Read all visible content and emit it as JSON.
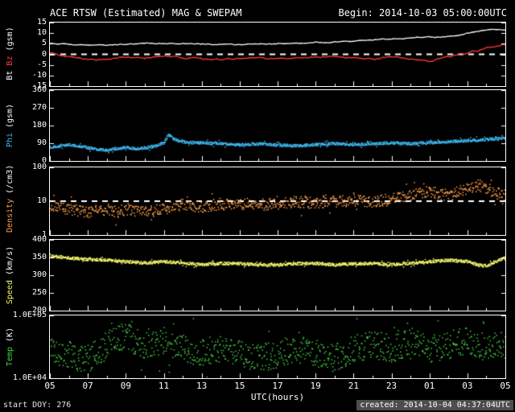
{
  "header": {
    "title": "ACE RTSW (Estimated) MAG & SWEPAM",
    "begin": "Begin: 2014-10-03 05:00:00UTC"
  },
  "footer": {
    "start_doy": "start DOY: 276",
    "created": "created: 2014-10-04 04:37:04UTC"
  },
  "colors": {
    "background": "#000000",
    "frame": "#ffffff",
    "bt": "#ffffff",
    "bz": "#ff3b3b",
    "phi": "#3fb8f0",
    "density": "#ffa04d",
    "speed": "#f5f56e",
    "temp": "#44d044"
  },
  "xaxis": {
    "title": "UTC(hours)",
    "range_hours": [
      5,
      29
    ],
    "ticks": [
      "05",
      "07",
      "09",
      "11",
      "13",
      "15",
      "17",
      "19",
      "21",
      "23",
      "01",
      "03",
      "05"
    ]
  },
  "chart_data": [
    {
      "id": "mag",
      "type": "line",
      "scale": "linear",
      "ylim": [
        -15,
        15
      ],
      "dashed": 0,
      "yticks": [
        {
          "v": 15,
          "label": "15"
        },
        {
          "v": 10,
          "label": "10"
        },
        {
          "v": 5,
          "label": "5"
        },
        {
          "v": 0,
          "label": "0"
        },
        {
          "v": -5,
          "label": "-5"
        },
        {
          "v": -10,
          "label": "-10"
        },
        {
          "v": -15,
          "label": "-15"
        }
      ],
      "ylabel": [
        {
          "text": "Bt",
          "color": "#ffffff"
        },
        {
          "text": "Bz",
          "color": "#ff3b3b"
        },
        {
          "text": "(gsm)",
          "color": "#ffffff"
        }
      ],
      "series": [
        {
          "name": "Bt",
          "color": "#ffffff",
          "style": "line",
          "jitter": 0.5,
          "points": [
            [
              5,
              5.3
            ],
            [
              5.5,
              5
            ],
            [
              6,
              4.7
            ],
            [
              7,
              4.3
            ],
            [
              7.5,
              4.6
            ],
            [
              8,
              4.3
            ],
            [
              9,
              4.8
            ],
            [
              10,
              5.1
            ],
            [
              11,
              5.2
            ],
            [
              12,
              5
            ],
            [
              13,
              4.8
            ],
            [
              14,
              4.6
            ],
            [
              15,
              4.6
            ],
            [
              16,
              4.8
            ],
            [
              17,
              5
            ],
            [
              18,
              5.2
            ],
            [
              19,
              5.5
            ],
            [
              20,
              5.8
            ],
            [
              21,
              6.2
            ],
            [
              22,
              6.8
            ],
            [
              23,
              7.2
            ],
            [
              24,
              7.7
            ],
            [
              25,
              8.2
            ],
            [
              25.3,
              7.8
            ],
            [
              26,
              8.4
            ],
            [
              26.5,
              9
            ],
            [
              27,
              9.8
            ],
            [
              27.5,
              10.8
            ],
            [
              28,
              11.4
            ],
            [
              28.4,
              11.8
            ],
            [
              28.7,
              11.5
            ],
            [
              29,
              11.2
            ]
          ]
        },
        {
          "name": "Bz",
          "color": "#ff3b3b",
          "style": "line",
          "jitter": 0.8,
          "points": [
            [
              5,
              0.5
            ],
            [
              5.5,
              -0.5
            ],
            [
              6,
              -1.2
            ],
            [
              7,
              -2.2
            ],
            [
              8,
              -2.4
            ],
            [
              8.5,
              -1.8
            ],
            [
              9,
              -1.2
            ],
            [
              10,
              -2
            ],
            [
              11,
              -0.8
            ],
            [
              12,
              -1.6
            ],
            [
              13,
              -2.1
            ],
            [
              14,
              -2.6
            ],
            [
              15,
              -2
            ],
            [
              16,
              -1.5
            ],
            [
              17,
              -2
            ],
            [
              18,
              -1.8
            ],
            [
              19,
              -1.4
            ],
            [
              20,
              -1.1
            ],
            [
              21,
              -1.6
            ],
            [
              22,
              -2.1
            ],
            [
              23,
              -1.1
            ],
            [
              24,
              -2
            ],
            [
              25,
              -3.1
            ],
            [
              25.5,
              -2.2
            ],
            [
              26,
              -1.2
            ],
            [
              26.5,
              -0.2
            ],
            [
              27,
              0.8
            ],
            [
              27.5,
              1.8
            ],
            [
              28,
              2.8
            ],
            [
              28.5,
              3.8
            ],
            [
              29,
              4.4
            ]
          ]
        }
      ]
    },
    {
      "id": "phi",
      "type": "scatter",
      "scale": "linear",
      "ylim": [
        0,
        360
      ],
      "yticks": [
        {
          "v": 360,
          "label": "360"
        },
        {
          "v": 270,
          "label": "270"
        },
        {
          "v": 180,
          "label": "180"
        },
        {
          "v": 90,
          "label": "90"
        },
        {
          "v": 0,
          "label": "0"
        }
      ],
      "ylabel": [
        {
          "text": "Phi",
          "color": "#3fb8f0"
        },
        {
          "text": "(gsm)",
          "color": "#ffffff"
        }
      ],
      "series": [
        {
          "name": "Phi",
          "color": "#3fb8f0",
          "style": "dots",
          "jitter": 7,
          "step": 0.0167,
          "points": [
            [
              5,
              72
            ],
            [
              5.5,
              80
            ],
            [
              6,
              85
            ],
            [
              6.5,
              78
            ],
            [
              7,
              70
            ],
            [
              7.5,
              62
            ],
            [
              8,
              58
            ],
            [
              8.5,
              66
            ],
            [
              9,
              72
            ],
            [
              9.5,
              64
            ],
            [
              10,
              70
            ],
            [
              10.5,
              78
            ],
            [
              11,
              95
            ],
            [
              11.2,
              135
            ],
            [
              11.5,
              115
            ],
            [
              12,
              100
            ],
            [
              12.5,
              96
            ],
            [
              13,
              94
            ],
            [
              14,
              90
            ],
            [
              15,
              85
            ],
            [
              16,
              90
            ],
            [
              17,
              84
            ],
            [
              18,
              80
            ],
            [
              19,
              86
            ],
            [
              20,
              91
            ],
            [
              21,
              86
            ],
            [
              22,
              91
            ],
            [
              23,
              95
            ],
            [
              24,
              90
            ],
            [
              25,
              96
            ],
            [
              26,
              101
            ],
            [
              27,
              106
            ],
            [
              28,
              112
            ],
            [
              28.5,
              116
            ],
            [
              29,
              121
            ]
          ]
        }
      ]
    },
    {
      "id": "density",
      "type": "scatter",
      "scale": "log",
      "ylim": [
        1,
        100
      ],
      "dashed": 10,
      "yticks": [
        {
          "v": 100,
          "label": "100"
        },
        {
          "v": 10,
          "label": "10"
        },
        {
          "v": 1,
          "label": "1"
        }
      ],
      "ylabel": [
        {
          "text": "Density",
          "color": "#ffa04d"
        },
        {
          "text": "(/cm3)",
          "color": "#ffffff"
        }
      ],
      "series": [
        {
          "name": "Density",
          "color": "#ffa04d",
          "style": "dots",
          "jitter": 0.17,
          "step": 0.025,
          "points": [
            [
              5,
              8
            ],
            [
              5.5,
              7
            ],
            [
              6,
              6
            ],
            [
              7,
              5
            ],
            [
              8,
              6
            ],
            [
              8.5,
              5
            ],
            [
              9,
              6
            ],
            [
              10,
              5
            ],
            [
              11,
              6
            ],
            [
              12,
              8
            ],
            [
              13,
              7
            ],
            [
              14,
              8
            ],
            [
              15,
              9
            ],
            [
              16,
              8
            ],
            [
              17,
              9
            ],
            [
              18,
              10
            ],
            [
              19,
              9
            ],
            [
              20,
              10
            ],
            [
              21,
              11
            ],
            [
              22,
              10
            ],
            [
              23,
              12
            ],
            [
              24,
              15
            ],
            [
              25,
              20
            ],
            [
              25.5,
              17
            ],
            [
              26,
              15
            ],
            [
              26.5,
              20
            ],
            [
              27,
              26
            ],
            [
              27.5,
              30
            ],
            [
              28,
              24
            ],
            [
              28.5,
              18
            ],
            [
              29,
              15
            ]
          ]
        }
      ]
    },
    {
      "id": "speed",
      "type": "scatter",
      "scale": "linear",
      "ylim": [
        200,
        400
      ],
      "yticks": [
        {
          "v": 400,
          "label": "400"
        },
        {
          "v": 350,
          "label": "350"
        },
        {
          "v": 300,
          "label": "300"
        },
        {
          "v": 250,
          "label": "250"
        },
        {
          "v": 200,
          "label": "200"
        }
      ],
      "ylabel": [
        {
          "text": "Speed",
          "color": "#f5f56e"
        },
        {
          "text": "(km/s)",
          "color": "#ffffff"
        }
      ],
      "series": [
        {
          "name": "Speed",
          "color": "#f5f56e",
          "style": "dots",
          "jitter": 4,
          "step": 0.0167,
          "points": [
            [
              5,
              356
            ],
            [
              6,
              350
            ],
            [
              7,
              346
            ],
            [
              8,
              344
            ],
            [
              9,
              340
            ],
            [
              10,
              336
            ],
            [
              11,
              340
            ],
            [
              12,
              336
            ],
            [
              13,
              332
            ],
            [
              14,
              335
            ],
            [
              15,
              334
            ],
            [
              16,
              331
            ],
            [
              17,
              331
            ],
            [
              18,
              334
            ],
            [
              19,
              335
            ],
            [
              20,
              331
            ],
            [
              21,
              334
            ],
            [
              22,
              335
            ],
            [
              23,
              331
            ],
            [
              24,
              335
            ],
            [
              25,
              340
            ],
            [
              26,
              344
            ],
            [
              27,
              340
            ],
            [
              27.5,
              331
            ],
            [
              28,
              328
            ],
            [
              28.4,
              338
            ],
            [
              28.7,
              346
            ],
            [
              29,
              352
            ]
          ]
        }
      ]
    },
    {
      "id": "temp",
      "type": "scatter",
      "scale": "log",
      "ylim": [
        10000,
        100000
      ],
      "yticks": [
        {
          "v": 100000,
          "label": "1.0E+05"
        },
        {
          "v": 10000,
          "label": "1.0E+04"
        }
      ],
      "ylabel": [
        {
          "text": "Temp",
          "color": "#44d044"
        },
        {
          "text": "(K)",
          "color": "#ffffff"
        }
      ],
      "series": [
        {
          "name": "Temp",
          "color": "#44d044",
          "style": "dots",
          "jitter": 0.22,
          "step": 0.025,
          "points": [
            [
              5,
              30000
            ],
            [
              5.5,
              26000
            ],
            [
              6,
              24000
            ],
            [
              6.5,
              22000
            ],
            [
              7,
              21000
            ],
            [
              7.5,
              26000
            ],
            [
              8,
              34000
            ],
            [
              8.5,
              42000
            ],
            [
              9,
              48000
            ],
            [
              9.5,
              40000
            ],
            [
              10,
              32000
            ],
            [
              10.5,
              36000
            ],
            [
              11,
              40000
            ],
            [
              11.5,
              34000
            ],
            [
              12,
              30000
            ],
            [
              12.5,
              28000
            ],
            [
              13,
              26000
            ],
            [
              14,
              30000
            ],
            [
              15,
              25000
            ],
            [
              16,
              21000
            ],
            [
              17,
              25000
            ],
            [
              18,
              30000
            ],
            [
              19,
              25000
            ],
            [
              20,
              21000
            ],
            [
              21,
              30000
            ],
            [
              22,
              35000
            ],
            [
              23,
              30000
            ],
            [
              24,
              40000
            ],
            [
              25,
              30000
            ],
            [
              26,
              35000
            ],
            [
              27,
              40000
            ],
            [
              28,
              30000
            ],
            [
              29,
              35000
            ]
          ]
        }
      ]
    }
  ]
}
